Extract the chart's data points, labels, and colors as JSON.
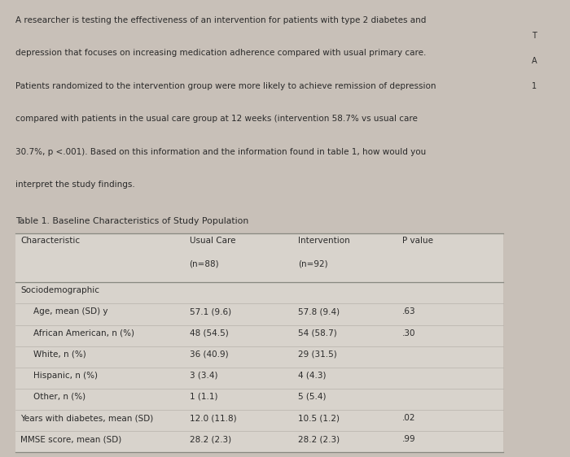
{
  "outer_bg": "#c8c0b8",
  "page_bg": "#ddd8d0",
  "table_bg": "#d8d3cc",
  "right_sliver_bg": "#c8c0b8",
  "text_color": "#2a2a2a",
  "line_color_heavy": "#888880",
  "line_color_light": "#b0aba4",
  "paragraph": "A researcher is testing the effectiveness of an intervention for patients with type 2 diabetes and\ndepression that focuses on increasing medication adherence compared with usual primary care.\nPatients randomized to the intervention group were more likely to achieve remission of depression\ncompared with patients in the usual care group at 12 weeks (intervention 58.7% vs usual care\n30.7%, p <.001). Based on this information and the information found in table 1, how would you\ninterpret the study findings.",
  "table_title": "Table 1. Baseline Characteristics of Study Population",
  "col_header_line1": [
    "Characteristic",
    "Usual Care",
    "Intervention",
    "P value"
  ],
  "col_header_line2": [
    "",
    "(n=88)",
    "(n=92)",
    ""
  ],
  "rows": [
    {
      "label": "Sociodemographic",
      "indent": false,
      "uc": "",
      "int": "",
      "pval": ""
    },
    {
      "label": "Age, mean (SD) y",
      "indent": true,
      "uc": "57.1 (9.6)",
      "int": "57.8 (9.4)",
      "pval": ".63"
    },
    {
      "label": "African American, n (%)",
      "indent": true,
      "uc": "48 (54.5)",
      "int": "54 (58.7)",
      "pval": ".30"
    },
    {
      "label": "White, n (%)",
      "indent": true,
      "uc": "36 (40.9)",
      "int": "29 (31.5)",
      "pval": ""
    },
    {
      "label": "Hispanic, n (%)",
      "indent": true,
      "uc": "3 (3.4)",
      "int": "4 (4.3)",
      "pval": ""
    },
    {
      "label": "Other, n (%)",
      "indent": true,
      "uc": "1 (1.1)",
      "int": "5 (5.4)",
      "pval": ""
    },
    {
      "label": "Years with diabetes, mean (SD)",
      "indent": false,
      "uc": "12.0 (11.8)",
      "int": "10.5 (1.2)",
      "pval": ".02"
    },
    {
      "label": "MMSE score, mean (SD)",
      "indent": false,
      "uc": "28.2 (2.3)",
      "int": "28.2 (2.3)",
      "pval": ".99"
    }
  ],
  "right_text": [
    "T",
    "A",
    "1"
  ],
  "font_size": 7.5,
  "font_size_title": 7.8,
  "font_size_right": 7.0
}
